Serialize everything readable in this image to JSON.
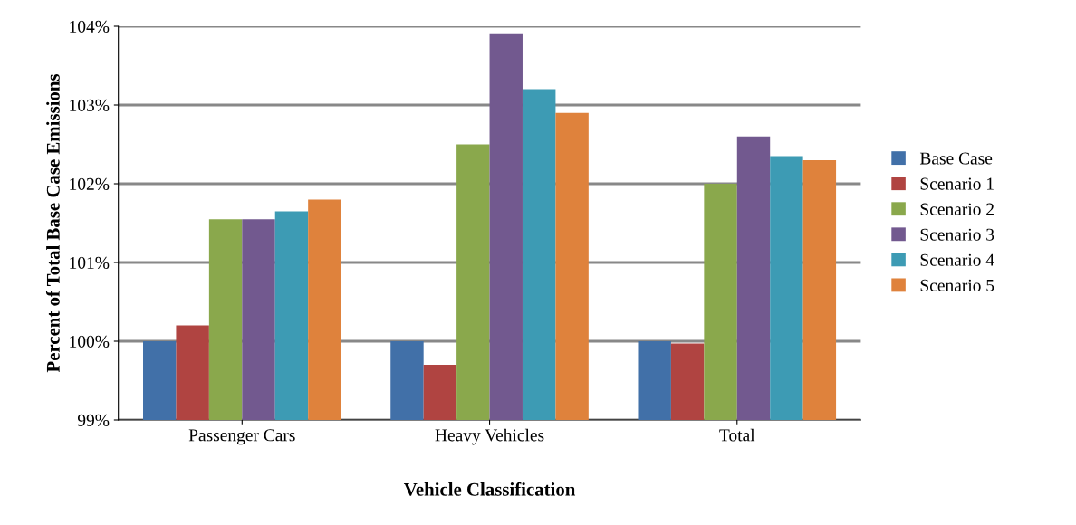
{
  "chart_data": {
    "type": "bar",
    "xlabel": "Vehicle Classification",
    "ylabel": "Percent of Total Base Case Emissions",
    "categories": [
      "Passenger Cars",
      "Heavy Vehicles",
      "Total"
    ],
    "series": [
      {
        "name": "Base Case",
        "color": "#4170a8",
        "values": [
          100.0,
          100.0,
          100.0
        ]
      },
      {
        "name": "Scenario 1",
        "color": "#b04441",
        "values": [
          100.2,
          99.7,
          99.97
        ]
      },
      {
        "name": "Scenario 2",
        "color": "#8aa84c",
        "values": [
          101.55,
          102.5,
          102.0
        ]
      },
      {
        "name": "Scenario 3",
        "color": "#72598f",
        "values": [
          101.55,
          103.9,
          102.6
        ]
      },
      {
        "name": "Scenario 4",
        "color": "#3d9bb4",
        "values": [
          101.65,
          103.2,
          102.35
        ]
      },
      {
        "name": "Scenario 5",
        "color": "#df823c",
        "values": [
          101.8,
          102.9,
          102.3
        ]
      }
    ],
    "ylim": [
      99,
      104
    ],
    "yticks": [
      {
        "value": 99,
        "label": "99%"
      },
      {
        "value": 100,
        "label": "100%"
      },
      {
        "value": 101,
        "label": "101%"
      },
      {
        "value": 102,
        "label": "102%"
      },
      {
        "value": 103,
        "label": "103%"
      },
      {
        "value": 104,
        "label": "104%"
      }
    ],
    "grid": "y",
    "legend": "right"
  }
}
